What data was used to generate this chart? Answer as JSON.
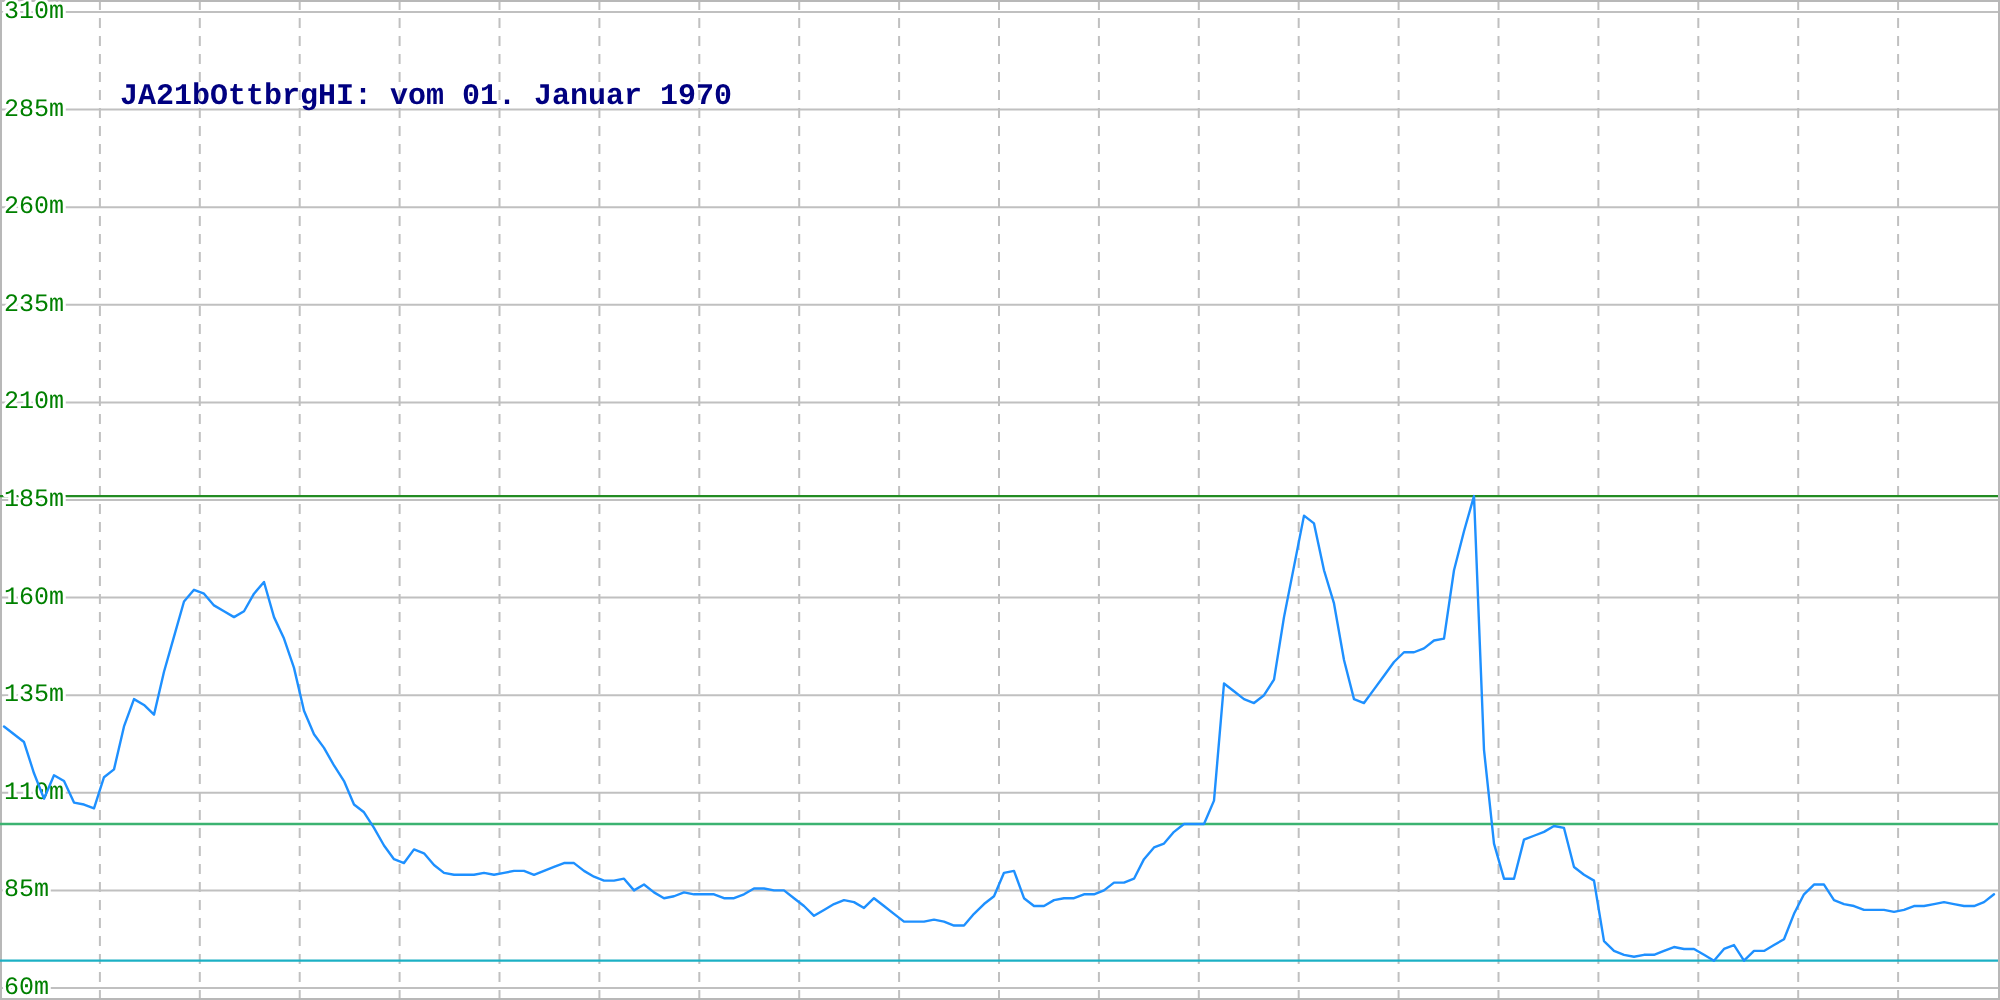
{
  "chart_data": {
    "type": "line",
    "title": "JA21bOttbrgHI: vom 01. Januar 1970",
    "categories": [
      null,
      null,
      null,
      null,
      null,
      null,
      null,
      null,
      null,
      null,
      null,
      null,
      null,
      null,
      null,
      null,
      null,
      null,
      null,
      null,
      null,
      null,
      null,
      null,
      null,
      null,
      null,
      null,
      null,
      null,
      null,
      null,
      null,
      null,
      null,
      null,
      null,
      null,
      null,
      null,
      null,
      null,
      null,
      null,
      null,
      null,
      null,
      null,
      null,
      null,
      null,
      null,
      null,
      null,
      null,
      null,
      null,
      null,
      null,
      null,
      null,
      null,
      null,
      null,
      null,
      null,
      null,
      null,
      null,
      null,
      null,
      null,
      null,
      null,
      null,
      null,
      null,
      null,
      null,
      null,
      null,
      null,
      null,
      null,
      null,
      null,
      null,
      null,
      null,
      null,
      null,
      null,
      null,
      null,
      null,
      null,
      null,
      null,
      null,
      null,
      null,
      null,
      null,
      null,
      null,
      null,
      null,
      null,
      null,
      null,
      null,
      null,
      null,
      null,
      null,
      null,
      null,
      null,
      null,
      null,
      null,
      null,
      null,
      null,
      null,
      null,
      null,
      null,
      null,
      null,
      null,
      null,
      null,
      null,
      null,
      null,
      null,
      null,
      null,
      null,
      null,
      null,
      null,
      null,
      null,
      null,
      null,
      null,
      null,
      null,
      null,
      null,
      null,
      null,
      null,
      null,
      null,
      null,
      null,
      null,
      null,
      null,
      null,
      null,
      null,
      null,
      null,
      null,
      null,
      null,
      null,
      null,
      null,
      null,
      null,
      null,
      null,
      null,
      null,
      null,
      null,
      null,
      null,
      null,
      null,
      null,
      null,
      null,
      null,
      null,
      null,
      null,
      null,
      null,
      null,
      null,
      null,
      null,
      null,
      null
    ],
    "series": [
      {
        "color": "#1e90ff",
        "values": [
          127,
          125,
          123,
          115,
          108.5,
          114.5,
          113,
          107.5,
          107,
          106,
          114,
          116,
          127,
          134,
          132.5,
          130,
          141,
          150,
          159,
          162,
          161,
          158,
          156.5,
          155,
          156.5,
          161,
          164,
          155,
          149.5,
          142,
          131,
          125,
          121.5,
          117,
          113,
          107,
          105,
          101,
          96.5,
          93,
          92,
          95.5,
          94.5,
          91.5,
          89.5,
          89,
          89,
          89,
          89.5,
          89,
          89.5,
          90,
          90,
          89,
          90,
          91,
          92,
          92,
          90,
          88.5,
          87.5,
          87.5,
          88,
          85,
          86.5,
          84.5,
          83,
          83.5,
          84.5,
          84,
          84,
          84,
          83,
          83,
          84,
          85.5,
          85.5,
          85,
          85,
          83,
          81,
          78.5,
          80,
          81.5,
          82.5,
          82,
          80.5,
          83,
          81,
          79,
          77,
          77,
          77,
          77.5,
          77,
          76,
          76,
          79,
          81.5,
          83.5,
          89.5,
          90,
          83,
          81,
          81,
          82.5,
          83,
          83,
          84,
          84,
          85,
          87,
          87,
          88,
          93,
          96,
          97,
          100,
          102,
          102,
          102,
          108,
          138,
          136,
          134,
          133,
          135,
          139,
          155,
          168,
          181,
          179,
          167,
          158.5,
          144,
          134,
          133,
          136.5,
          140,
          143.5,
          146,
          146,
          147,
          149,
          149.5,
          167,
          177,
          186,
          121,
          97,
          88,
          88,
          98,
          99,
          100,
          101.5,
          101,
          91,
          89,
          87.5,
          72,
          69.5,
          68.5,
          68,
          68.5,
          68.5,
          69.5,
          70.5,
          70,
          70,
          68.5,
          67,
          70,
          71,
          67,
          69.5,
          69.5,
          71,
          72.5,
          79,
          84,
          86.5,
          86.5,
          82.5,
          81.5,
          81,
          80,
          80,
          80,
          79.5,
          80,
          81,
          81,
          81.5,
          82,
          81.5,
          81,
          81,
          82,
          84
        ]
      }
    ],
    "ylim": [
      60,
      310
    ],
    "yticks": [
      {
        "value": 60,
        "label": "60m"
      },
      {
        "value": 85,
        "label": "85m"
      },
      {
        "value": 110,
        "label": "110m"
      },
      {
        "value": 135,
        "label": "135m"
      },
      {
        "value": 160,
        "label": "160m"
      },
      {
        "value": 185,
        "label": "185m"
      },
      {
        "value": 210,
        "label": "210m"
      },
      {
        "value": 235,
        "label": "235m"
      },
      {
        "value": 260,
        "label": "260m"
      },
      {
        "value": 285,
        "label": "285m"
      },
      {
        "value": 310,
        "label": "310m"
      }
    ],
    "grid": true,
    "tick_labels": "y",
    "ref_lines": [
      {
        "axis": "y",
        "value": 186,
        "color": "#228b22"
      },
      {
        "axis": "y",
        "value": 102,
        "color": "#3cb371"
      },
      {
        "axis": "y",
        "value": 67,
        "color": "#1cb0c4"
      }
    ]
  }
}
